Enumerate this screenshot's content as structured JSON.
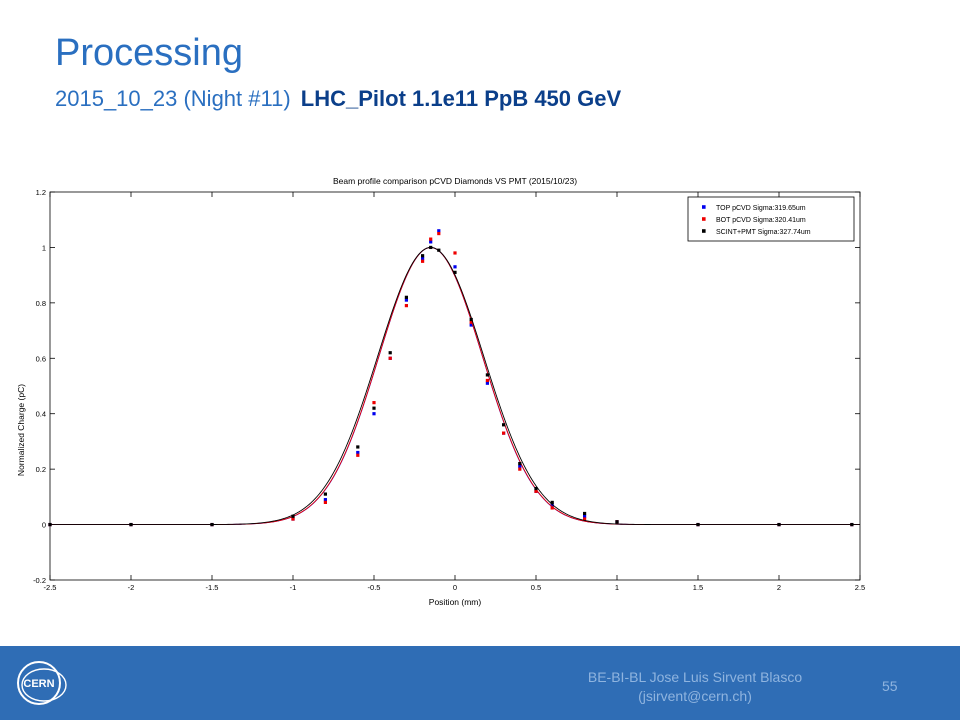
{
  "slide": {
    "title": "Processing",
    "subtitle_plain": "2015_10_23 (Night #11)",
    "subtitle_bold": "LHC_Pilot 1.1e11 PpB  450 GeV"
  },
  "footer": {
    "line1": "BE-BI-BL Jose Luis Sirvent Blasco",
    "line2": "(jsirvent@cern.ch)",
    "page_number": "55",
    "logo_text": "CERN",
    "background_color": "#2f6db5"
  },
  "chart_data": {
    "type": "scatter",
    "title": "Beam profile comparison pCVD Diamonds VS PMT (2015/10/23)",
    "xlabel": "Position (mm)",
    "ylabel": "Normalized Charge (pC)",
    "xlim": [
      -2.5,
      2.5
    ],
    "ylim": [
      -0.2,
      1.2
    ],
    "xticks": [
      "-2.5",
      "-2",
      "-1.5",
      "-1",
      "-0.5",
      "0",
      "0.5",
      "1",
      "1.5",
      "2",
      "2.5"
    ],
    "yticks": [
      "-0.2",
      "0",
      "0.2",
      "0.4",
      "0.6",
      "0.8",
      "1",
      "1.2"
    ],
    "grid": false,
    "legend_position": "top-right",
    "series": [
      {
        "name": "TOP pCVD Sigma:319.65um",
        "color": "#0000ee",
        "mu": -0.15,
        "sigma_mm": 0.31965,
        "x": [
          -2.5,
          -2.0,
          -1.5,
          -1.0,
          -0.8,
          -0.6,
          -0.5,
          -0.4,
          -0.3,
          -0.2,
          -0.15,
          -0.1,
          0.0,
          0.1,
          0.2,
          0.3,
          0.4,
          0.5,
          0.6,
          0.8,
          1.0,
          1.5,
          2.0,
          2.45
        ],
        "y": [
          0.0,
          0.0,
          0.0,
          0.02,
          0.09,
          0.26,
          0.4,
          0.6,
          0.81,
          0.96,
          1.02,
          1.06,
          0.93,
          0.72,
          0.51,
          0.33,
          0.21,
          0.12,
          0.07,
          0.03,
          0.01,
          0.0,
          0.0,
          0.0
        ]
      },
      {
        "name": "BOT pCVD Sigma:320.41um",
        "color": "#ee0000",
        "mu": -0.15,
        "sigma_mm": 0.32041,
        "x": [
          -2.5,
          -2.0,
          -1.5,
          -1.0,
          -0.8,
          -0.6,
          -0.5,
          -0.4,
          -0.3,
          -0.2,
          -0.15,
          -0.1,
          0.0,
          0.1,
          0.2,
          0.3,
          0.4,
          0.5,
          0.6,
          0.8,
          1.0,
          1.5,
          2.0,
          2.45
        ],
        "y": [
          0.0,
          0.0,
          0.0,
          0.02,
          0.08,
          0.25,
          0.44,
          0.6,
          0.79,
          0.95,
          1.03,
          1.05,
          0.98,
          0.73,
          0.52,
          0.33,
          0.2,
          0.12,
          0.06,
          0.02,
          0.01,
          0.0,
          0.0,
          0.0
        ]
      },
      {
        "name": "SCINT+PMT Sigma:327.74um",
        "color": "#000000",
        "mu": -0.15,
        "sigma_mm": 0.32774,
        "x": [
          -2.5,
          -2.0,
          -1.5,
          -1.0,
          -0.8,
          -0.6,
          -0.5,
          -0.4,
          -0.3,
          -0.2,
          -0.15,
          -0.1,
          0.0,
          0.1,
          0.2,
          0.3,
          0.4,
          0.5,
          0.6,
          0.8,
          1.0,
          1.5,
          2.0,
          2.45
        ],
        "y": [
          0.0,
          0.0,
          0.0,
          0.03,
          0.11,
          0.28,
          0.42,
          0.62,
          0.82,
          0.97,
          1.0,
          0.99,
          0.91,
          0.74,
          0.54,
          0.36,
          0.22,
          0.13,
          0.08,
          0.04,
          0.01,
          0.0,
          0.0,
          0.0
        ]
      }
    ]
  }
}
